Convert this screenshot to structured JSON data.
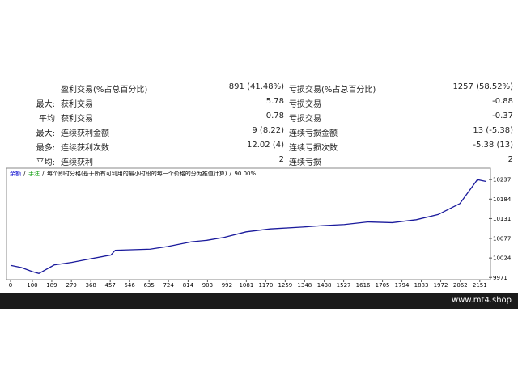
{
  "stats": {
    "rows": [
      [
        null,
        "盈利交易(%占总百分比)",
        "891 (41.48%)",
        "亏损交易(%占总百分比)",
        "1257 (58.52%)"
      ],
      [
        "最大:",
        "获利交易",
        "5.78",
        "亏损交易",
        "-0.88"
      ],
      [
        "平均",
        "获利交易",
        "0.78",
        "亏损交易",
        "-0.37"
      ],
      [
        "最大:",
        "连续获利金额",
        "9 (8.22)",
        "连续亏损金额",
        "13 (-5.38)"
      ],
      [
        "最多:",
        "连续获利次数",
        "12.02 (4)",
        "连续亏损次数",
        "-5.38 (13)"
      ],
      [
        "平均:",
        "连续获利",
        "2",
        "连续亏损",
        "2"
      ]
    ]
  },
  "chart_data": {
    "type": "line",
    "legend": [
      "余额",
      "手注",
      "每个即时分格(基于所有可利用的最小时段的每一个价格的分为推值计算)",
      "90.00%"
    ],
    "x": [
      0,
      50,
      100,
      130,
      200,
      280,
      350,
      460,
      480,
      640,
      720,
      830,
      900,
      980,
      1080,
      1190,
      1340,
      1430,
      1530,
      1640,
      1750,
      1860,
      1960,
      2060,
      2140,
      2180
    ],
    "series": [
      {
        "name": "余额",
        "color": "#1a1a9c",
        "values": [
          10004,
          9998,
          9987,
          9982,
          10005,
          10012,
          10020,
          10032,
          10045,
          10048,
          10055,
          10068,
          10072,
          10080,
          10095,
          10103,
          10108,
          10112,
          10115,
          10122,
          10120,
          10128,
          10142,
          10172,
          10237,
          10232
        ]
      }
    ],
    "xlim": [
      0,
      2200
    ],
    "ylim": [
      9965,
      10255
    ],
    "xticks": [
      0,
      100,
      189,
      279,
      368,
      457,
      546,
      635,
      724,
      814,
      903,
      992,
      1081,
      1170,
      1259,
      1348,
      1438,
      1527,
      1616,
      1705,
      1794,
      1883,
      1972,
      2062,
      2151
    ],
    "yticks": [
      9971,
      10024,
      10077,
      10131,
      10184,
      10237
    ]
  },
  "footer": "www.mt4.shop"
}
